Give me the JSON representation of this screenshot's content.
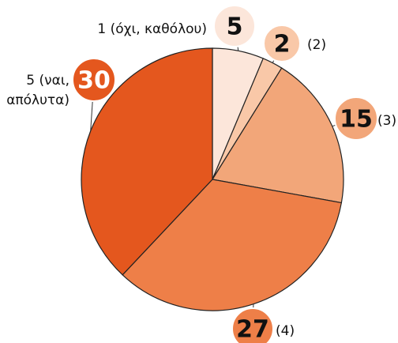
{
  "chart_data": {
    "type": "pie",
    "categories": [
      "1 (όχι, καθόλου)",
      "(2)",
      "(3)",
      "(4)",
      "5 (ναι, απόλυτα)"
    ],
    "values": [
      5,
      2,
      15,
      27,
      30
    ],
    "colors": [
      "#fce6da",
      "#f9c8a8",
      "#f2a679",
      "#ee7f48",
      "#e4571e"
    ]
  }
}
